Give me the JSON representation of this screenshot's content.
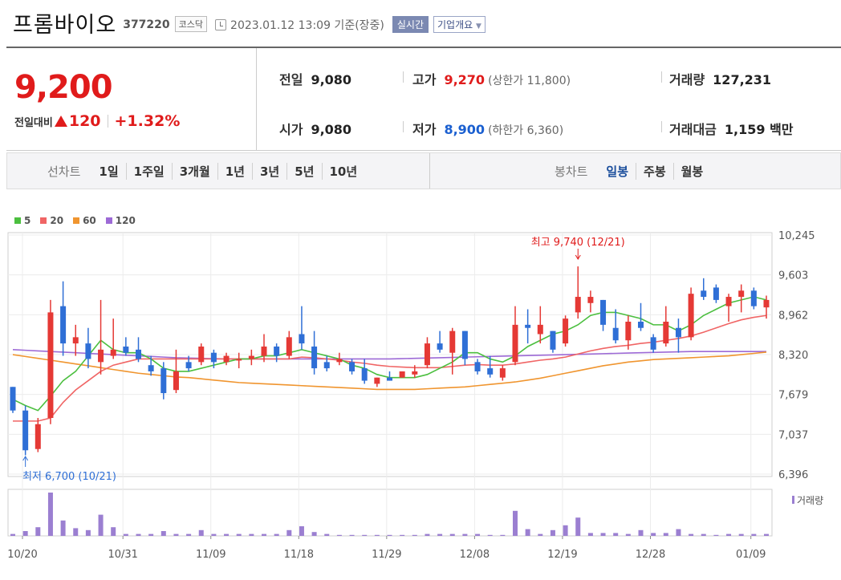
{
  "header": {
    "name": "프롬바이오",
    "code": "377220",
    "market": "코스닥",
    "timestamp": "2023.01.12 13:09  기준(장중)",
    "realtime": "실시간",
    "overview": "기업개요"
  },
  "quote": {
    "price": "9,200",
    "change_label": "전일대비",
    "change": "120",
    "change_pct": "+1.32%",
    "prev_label": "전일",
    "prev": "9,080",
    "open_label": "시가",
    "open": "9,080",
    "high_label": "고가",
    "high": "9,270",
    "upper_limit": "(상한가 11,800)",
    "low_label": "저가",
    "low": "8,900",
    "lower_limit": "(하한가 6,360)",
    "volume_label": "거래량",
    "volume": "127,231",
    "amount_label": "거래대금",
    "amount": "1,159 백만",
    "colors": {
      "up": "#e01b1b",
      "down": "#1a5fd0"
    }
  },
  "periods": {
    "line_title": "선차트",
    "line_options": [
      "1일",
      "1주일",
      "3개월",
      "1년",
      "3년",
      "5년",
      "10년"
    ],
    "candle_title": "봉차트",
    "candle_options": [
      "일봉",
      "주봉",
      "월봉"
    ],
    "candle_active": "일봉"
  },
  "chart_data": {
    "type": "candlestick",
    "legend": [
      {
        "name": "5",
        "color": "#4bbf3f"
      },
      {
        "name": "20",
        "color": "#f06565"
      },
      {
        "name": "60",
        "color": "#f0952f"
      },
      {
        "name": "120",
        "color": "#9d6ad6"
      }
    ],
    "y_ticks": [
      "10,245",
      "9,603",
      "8,962",
      "8,320",
      "7,679",
      "7,037",
      "6,396"
    ],
    "ylim": [
      6396,
      10245
    ],
    "x_ticks": [
      "10/20",
      "10/31",
      "11/09",
      "11/18",
      "11/29",
      "12/08",
      "12/19",
      "12/28",
      "01/09"
    ],
    "annotation_high": "최고 9,740 (12/21)",
    "annotation_low": "최저 6,700 (10/21)",
    "volume_label": "거래량",
    "colors": {
      "up": "#e53935",
      "down": "#2f6fd6",
      "volume": "#9b7fd1"
    },
    "candles": [
      {
        "o": 7800,
        "h": 7800,
        "l": 7380,
        "c": 7420,
        "v": 2
      },
      {
        "o": 7420,
        "h": 7500,
        "l": 6700,
        "c": 6780,
        "v": 5
      },
      {
        "o": 6800,
        "h": 7300,
        "l": 6750,
        "c": 7200,
        "v": 9
      },
      {
        "o": 7300,
        "h": 9200,
        "l": 7200,
        "c": 9000,
        "v": 45
      },
      {
        "o": 9100,
        "h": 9500,
        "l": 8300,
        "c": 8500,
        "v": 16
      },
      {
        "o": 8500,
        "h": 8800,
        "l": 8300,
        "c": 8600,
        "v": 8
      },
      {
        "o": 8500,
        "h": 8750,
        "l": 8100,
        "c": 8250,
        "v": 6
      },
      {
        "o": 8200,
        "h": 9200,
        "l": 8000,
        "c": 8400,
        "v": 22
      },
      {
        "o": 8300,
        "h": 8900,
        "l": 8250,
        "c": 8400,
        "v": 9
      },
      {
        "o": 8450,
        "h": 8600,
        "l": 8300,
        "c": 8350,
        "v": 2
      },
      {
        "o": 8400,
        "h": 8600,
        "l": 8200,
        "c": 8250,
        "v": 2
      },
      {
        "o": 8150,
        "h": 8300,
        "l": 7980,
        "c": 8050,
        "v": 2
      },
      {
        "o": 8100,
        "h": 8200,
        "l": 7600,
        "c": 7700,
        "v": 5
      },
      {
        "o": 7750,
        "h": 8400,
        "l": 7700,
        "c": 8050,
        "v": 2
      },
      {
        "o": 8200,
        "h": 8300,
        "l": 8050,
        "c": 8100,
        "v": 2
      },
      {
        "o": 8200,
        "h": 8500,
        "l": 8150,
        "c": 8450,
        "v": 6
      },
      {
        "o": 8350,
        "h": 8400,
        "l": 8100,
        "c": 8200,
        "v": 2
      },
      {
        "o": 8200,
        "h": 8350,
        "l": 8150,
        "c": 8300,
        "v": 2
      },
      {
        "o": 8250,
        "h": 8350,
        "l": 8100,
        "c": 8250,
        "v": 2
      },
      {
        "o": 8250,
        "h": 8400,
        "l": 8150,
        "c": 8300,
        "v": 2
      },
      {
        "o": 8300,
        "h": 8650,
        "l": 8200,
        "c": 8450,
        "v": 2
      },
      {
        "o": 8450,
        "h": 8500,
        "l": 8200,
        "c": 8300,
        "v": 2
      },
      {
        "o": 8300,
        "h": 8700,
        "l": 8250,
        "c": 8600,
        "v": 6
      },
      {
        "o": 8650,
        "h": 9100,
        "l": 8400,
        "c": 8500,
        "v": 10
      },
      {
        "o": 8450,
        "h": 8700,
        "l": 8000,
        "c": 8100,
        "v": 4
      },
      {
        "o": 8200,
        "h": 8300,
        "l": 8050,
        "c": 8100,
        "v": 2
      },
      {
        "o": 8200,
        "h": 8350,
        "l": 8150,
        "c": 8250,
        "v": 1
      },
      {
        "o": 8200,
        "h": 8250,
        "l": 8000,
        "c": 8050,
        "v": 1
      },
      {
        "o": 8100,
        "h": 8250,
        "l": 7850,
        "c": 7900,
        "v": 1
      },
      {
        "o": 7850,
        "h": 7950,
        "l": 7800,
        "c": 7950,
        "v": 1
      },
      {
        "o": 7950,
        "h": 8050,
        "l": 7900,
        "c": 7900,
        "v": 1
      },
      {
        "o": 7950,
        "h": 8050,
        "l": 7950,
        "c": 8050,
        "v": 1
      },
      {
        "o": 8000,
        "h": 8150,
        "l": 7950,
        "c": 8050,
        "v": 1
      },
      {
        "o": 8150,
        "h": 8600,
        "l": 8100,
        "c": 8500,
        "v": 2
      },
      {
        "o": 8500,
        "h": 8700,
        "l": 8350,
        "c": 8400,
        "v": 2
      },
      {
        "o": 8350,
        "h": 8750,
        "l": 8000,
        "c": 8700,
        "v": 2
      },
      {
        "o": 8700,
        "h": 8700,
        "l": 8150,
        "c": 8250,
        "v": 2
      },
      {
        "o": 8200,
        "h": 8250,
        "l": 8000,
        "c": 8050,
        "v": 2
      },
      {
        "o": 8100,
        "h": 8300,
        "l": 7950,
        "c": 8000,
        "v": 1
      },
      {
        "o": 7950,
        "h": 8150,
        "l": 7900,
        "c": 8100,
        "v": 1
      },
      {
        "o": 8200,
        "h": 9100,
        "l": 8150,
        "c": 8800,
        "v": 26
      },
      {
        "o": 8800,
        "h": 9050,
        "l": 8500,
        "c": 8750,
        "v": 7
      },
      {
        "o": 8650,
        "h": 9100,
        "l": 8500,
        "c": 8800,
        "v": 2
      },
      {
        "o": 8700,
        "h": 8700,
        "l": 8350,
        "c": 8400,
        "v": 6
      },
      {
        "o": 8500,
        "h": 8950,
        "l": 8450,
        "c": 8900,
        "v": 11
      },
      {
        "o": 9000,
        "h": 9740,
        "l": 8900,
        "c": 9250,
        "v": 19
      },
      {
        "o": 9150,
        "h": 9350,
        "l": 9000,
        "c": 9250,
        "v": 3
      },
      {
        "o": 9200,
        "h": 9200,
        "l": 8700,
        "c": 8800,
        "v": 3
      },
      {
        "o": 8750,
        "h": 9050,
        "l": 8500,
        "c": 8550,
        "v": 3
      },
      {
        "o": 8550,
        "h": 8950,
        "l": 8400,
        "c": 8850,
        "v": 2
      },
      {
        "o": 8850,
        "h": 9150,
        "l": 8700,
        "c": 8750,
        "v": 6
      },
      {
        "o": 8600,
        "h": 8650,
        "l": 8350,
        "c": 8400,
        "v": 3
      },
      {
        "o": 8500,
        "h": 9100,
        "l": 8450,
        "c": 8850,
        "v": 3
      },
      {
        "o": 8750,
        "h": 8900,
        "l": 8350,
        "c": 8600,
        "v": 7
      },
      {
        "o": 8600,
        "h": 9400,
        "l": 8550,
        "c": 9300,
        "v": 2
      },
      {
        "o": 9350,
        "h": 9550,
        "l": 9200,
        "c": 9250,
        "v": 2
      },
      {
        "o": 9400,
        "h": 9450,
        "l": 9150,
        "c": 9200,
        "v": 1
      },
      {
        "o": 9100,
        "h": 9300,
        "l": 8850,
        "c": 9250,
        "v": 2
      },
      {
        "o": 9250,
        "h": 9450,
        "l": 9000,
        "c": 9350,
        "v": 2
      },
      {
        "o": 9350,
        "h": 9400,
        "l": 9050,
        "c": 9100,
        "v": 2
      },
      {
        "o": 9080,
        "h": 9270,
        "l": 8900,
        "c": 9200,
        "v": 2
      }
    ],
    "ma5": [
      7600,
      7500,
      7420,
      7650,
      7900,
      8050,
      8300,
      8550,
      8400,
      8350,
      8350,
      8250,
      8100,
      8050,
      8050,
      8100,
      8150,
      8200,
      8250,
      8250,
      8300,
      8300,
      8350,
      8400,
      8350,
      8300,
      8250,
      8150,
      8100,
      8000,
      7950,
      7950,
      7950,
      8000,
      8100,
      8200,
      8350,
      8350,
      8250,
      8200,
      8300,
      8450,
      8550,
      8650,
      8700,
      8800,
      8950,
      9000,
      9000,
      8950,
      8900,
      8800,
      8800,
      8700,
      8800,
      8950,
      9050,
      9150,
      9200,
      9250,
      9200
    ],
    "ma20": [
      7250,
      7250,
      7250,
      7300,
      7550,
      7750,
      7900,
      8050,
      8150,
      8200,
      8250,
      8250,
      8250,
      8250,
      8250,
      8250,
      8250,
      8250,
      8250,
      8250,
      8250,
      8250,
      8250,
      8280,
      8270,
      8250,
      8230,
      8200,
      8180,
      8150,
      8130,
      8120,
      8110,
      8110,
      8110,
      8130,
      8150,
      8160,
      8150,
      8150,
      8170,
      8200,
      8230,
      8250,
      8280,
      8330,
      8380,
      8420,
      8450,
      8470,
      8500,
      8520,
      8550,
      8580,
      8620,
      8680,
      8750,
      8820,
      8880,
      8920,
      8950
    ],
    "ma60": [
      8320,
      8290,
      8260,
      8230,
      8200,
      8170,
      8140,
      8110,
      8080,
      8050,
      8020,
      8000,
      7980,
      7960,
      7950,
      7930,
      7910,
      7890,
      7870,
      7860,
      7850,
      7840,
      7830,
      7820,
      7810,
      7800,
      7790,
      7780,
      7770,
      7760,
      7760,
      7760,
      7760,
      7770,
      7780,
      7790,
      7800,
      7820,
      7840,
      7860,
      7880,
      7910,
      7940,
      7980,
      8020,
      8060,
      8100,
      8140,
      8170,
      8200,
      8220,
      8240,
      8250,
      8260,
      8270,
      8280,
      8290,
      8300,
      8320,
      8340,
      8360
    ],
    "ma120": [
      8400,
      8390,
      8380,
      8370,
      8360,
      8350,
      8340,
      8330,
      8320,
      8310,
      8300,
      8290,
      8280,
      8270,
      8265,
      8260,
      8255,
      8250,
      8250,
      8250,
      8250,
      8250,
      8250,
      8250,
      8250,
      8250,
      8250,
      8250,
      8250,
      8250,
      8250,
      8255,
      8260,
      8265,
      8270,
      8275,
      8280,
      8285,
      8290,
      8295,
      8300,
      8305,
      8310,
      8315,
      8320,
      8325,
      8330,
      8335,
      8340,
      8345,
      8350,
      8355,
      8360,
      8365,
      8370,
      8370,
      8370,
      8370,
      8370,
      8370,
      8370
    ]
  }
}
